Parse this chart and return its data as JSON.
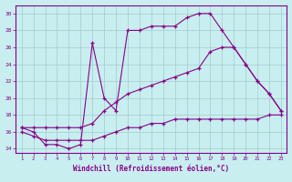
{
  "xlabel": "Windchill (Refroidissement éolien,°C)",
  "xlim": [
    0.5,
    23.5
  ],
  "ylim": [
    13.5,
    31
  ],
  "yticks": [
    14,
    16,
    18,
    20,
    22,
    24,
    26,
    28,
    30
  ],
  "xticks": [
    1,
    2,
    3,
    4,
    5,
    6,
    7,
    8,
    9,
    10,
    11,
    12,
    13,
    14,
    15,
    16,
    17,
    18,
    19,
    20,
    21,
    22,
    23
  ],
  "bg_color": "#c8eef0",
  "grid_color": "#a0cccc",
  "line_color": "#880088",
  "line1_x": [
    1,
    2,
    3,
    4,
    5,
    6,
    7,
    8,
    9,
    10,
    11,
    12,
    13,
    14,
    15,
    16,
    17,
    18,
    19,
    20,
    21,
    22,
    23
  ],
  "line1_y": [
    16.5,
    16.0,
    14.5,
    14.5,
    14.0,
    14.5,
    26.5,
    20.0,
    18.5,
    28.0,
    28.0,
    28.5,
    28.5,
    28.5,
    29.5,
    30.0,
    30.0,
    28.0,
    26.0,
    24.0,
    22.0,
    20.5,
    18.5
  ],
  "line2_x": [
    1,
    2,
    3,
    4,
    5,
    6,
    7,
    8,
    9,
    10,
    11,
    12,
    13,
    14,
    15,
    16,
    17,
    18,
    19,
    20,
    21,
    22,
    23
  ],
  "line2_y": [
    16.5,
    16.5,
    16.5,
    16.5,
    16.5,
    16.5,
    17.0,
    18.5,
    19.5,
    20.5,
    21.0,
    21.5,
    22.0,
    22.5,
    23.0,
    23.5,
    25.5,
    26.0,
    26.0,
    24.0,
    22.0,
    20.5,
    18.5
  ],
  "line3_x": [
    1,
    2,
    3,
    4,
    5,
    6,
    7,
    8,
    9,
    10,
    11,
    12,
    13,
    14,
    15,
    16,
    17,
    18,
    19,
    20,
    21,
    22,
    23
  ],
  "line3_y": [
    16.0,
    15.5,
    15.0,
    15.0,
    15.0,
    15.0,
    15.0,
    15.5,
    16.0,
    16.5,
    16.5,
    17.0,
    17.0,
    17.5,
    17.5,
    17.5,
    17.5,
    17.5,
    17.5,
    17.5,
    17.5,
    18.0,
    18.0
  ]
}
